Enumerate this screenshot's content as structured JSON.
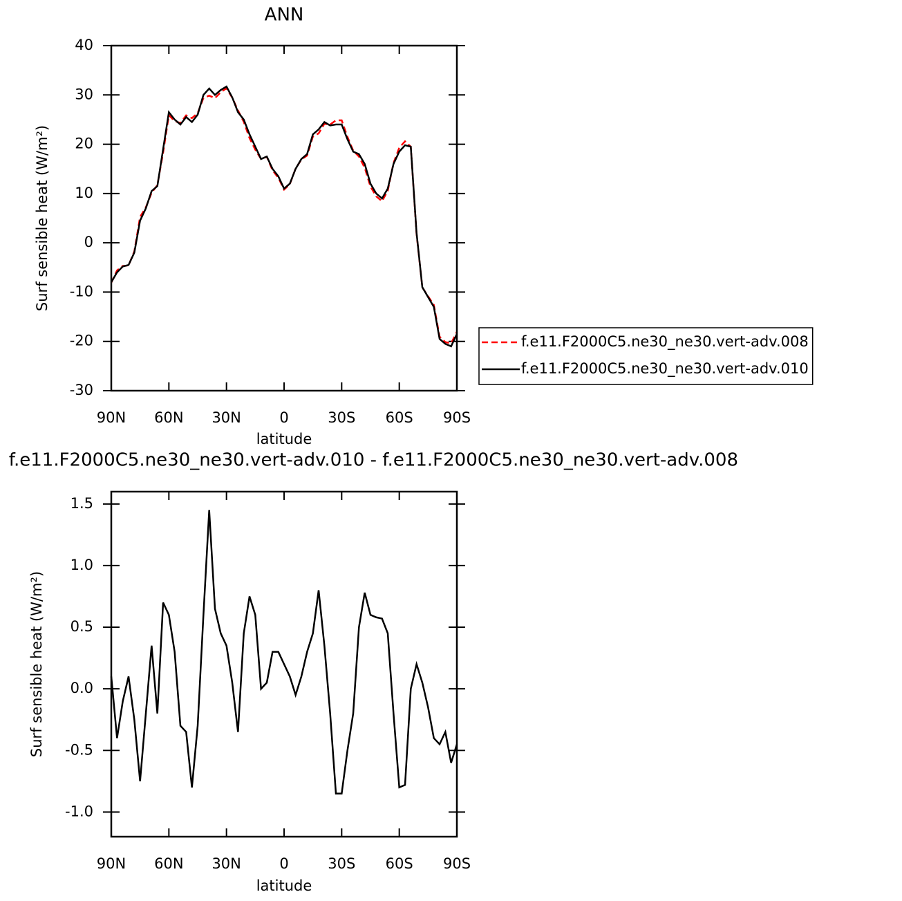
{
  "chart_data": [
    {
      "type": "line",
      "title": "ANN",
      "x_label": "latitude",
      "y_label": "Surf sensible heat (W/m²)",
      "x": [
        90,
        87,
        84,
        81,
        78,
        75,
        72,
        69,
        66,
        63,
        60,
        57,
        54,
        51,
        48,
        45,
        42,
        39,
        36,
        33,
        30,
        27,
        24,
        21,
        18,
        15,
        12,
        9,
        6,
        3,
        0,
        -3,
        -6,
        -9,
        -12,
        -15,
        -18,
        -21,
        -24,
        -27,
        -30,
        -33,
        -36,
        -39,
        -42,
        -45,
        -48,
        -51,
        -54,
        -57,
        -60,
        -63,
        -66,
        -69,
        -72,
        -75,
        -78,
        -81,
        -84,
        -87,
        -90
      ],
      "series": [
        {
          "name": "f.e11.F2000C5.ne30_ne30.vert-adv.008",
          "color": "#ff0000",
          "line_style": "dashed",
          "values": [
            -8.1,
            -5.6,
            -4.7,
            -4.6,
            -1.75,
            5.25,
            7.2,
            10.15,
            11.7,
            18.3,
            25.9,
            24.7,
            24.3,
            25.85,
            25.3,
            26.3,
            29.4,
            29.85,
            29.35,
            30.55,
            31.35,
            29.45,
            26.85,
            24.55,
            21.25,
            18.9,
            17,
            17.45,
            14.7,
            13.2,
            10.8,
            11.9,
            15.05,
            16.9,
            17.7,
            21.55,
            22.2,
            24.15,
            24,
            24.85,
            24.85,
            21.5,
            18.7,
            17.5,
            15.22,
            11.4,
            9.42,
            8.43,
            10.55,
            16.2,
            19.3,
            20.58,
            19.5,
            1.8,
            -9.05,
            -10.85,
            -12.6,
            -19.05,
            -20.15,
            -20.4,
            -18.05
          ]
        },
        {
          "name": "f.e11.F2000C5.ne30_ne30.vert-adv.010",
          "color": "#000000",
          "line_style": "solid",
          "values": [
            -8,
            -6,
            -4.8,
            -4.5,
            -2,
            4.5,
            7,
            10.5,
            11.5,
            19,
            26.5,
            25,
            24,
            25.5,
            24.5,
            26,
            30,
            31.3,
            30,
            31,
            31.7,
            29.5,
            26.5,
            25,
            22,
            19.5,
            17,
            17.5,
            15,
            13.5,
            11,
            12,
            15,
            17,
            18,
            22,
            23,
            24.5,
            23.8,
            24,
            24,
            21,
            18.5,
            18,
            16,
            12,
            10,
            9,
            11,
            16,
            18.5,
            19.8,
            19.5,
            2,
            -9,
            -11,
            -13,
            -19.5,
            -20.5,
            -21,
            -18.5
          ]
        }
      ],
      "xlim": [
        90,
        -90
      ],
      "xticks": [
        {
          "value": 90,
          "label": "90N"
        },
        {
          "value": 60,
          "label": "60N"
        },
        {
          "value": 30,
          "label": "30N"
        },
        0,
        {
          "value": -30,
          "label": "30S"
        },
        {
          "value": -60,
          "label": "60S"
        },
        {
          "value": -90,
          "label": "90S"
        }
      ],
      "ylim": [
        -30,
        40
      ],
      "yticks": [
        -30,
        -20,
        -10,
        0,
        10,
        20,
        30,
        40
      ],
      "legend_position": "right"
    },
    {
      "type": "line",
      "title": "f.e11.F2000C5.ne30_ne30.vert-adv.010 - f.e11.F2000C5.ne30_ne30.vert-adv.008",
      "x_label": "latitude",
      "y_label": "Surf sensible heat (W/m²)",
      "x": [
        90,
        87,
        84,
        81,
        78,
        75,
        72,
        69,
        66,
        63,
        60,
        57,
        54,
        51,
        48,
        45,
        42,
        39,
        36,
        33,
        30,
        27,
        24,
        21,
        18,
        15,
        12,
        9,
        6,
        3,
        0,
        -3,
        -6,
        -9,
        -12,
        -15,
        -18,
        -21,
        -24,
        -27,
        -30,
        -33,
        -36,
        -39,
        -42,
        -45,
        -48,
        -51,
        -54,
        -57,
        -60,
        -63,
        -66,
        -69,
        -72,
        -75,
        -78,
        -81,
        -84,
        -87,
        -90
      ],
      "color": "#000000",
      "values": [
        0.1,
        -0.4,
        -0.1,
        0.1,
        -0.25,
        -0.75,
        -0.2,
        0.35,
        -0.2,
        0.7,
        0.6,
        0.3,
        -0.3,
        -0.35,
        -0.8,
        -0.3,
        0.6,
        1.45,
        0.65,
        0.45,
        0.35,
        0.05,
        -0.35,
        0.45,
        0.75,
        0.6,
        0,
        0.05,
        0.3,
        0.3,
        0.2,
        0.1,
        -0.05,
        0.1,
        0.3,
        0.45,
        0.8,
        0.35,
        -0.2,
        -0.85,
        -0.85,
        -0.5,
        -0.2,
        0.5,
        0.78,
        0.6,
        0.58,
        0.57,
        0.45,
        -0.2,
        -0.8,
        -0.78,
        0,
        0.2,
        0.05,
        -0.15,
        -0.4,
        -0.45,
        -0.35,
        -0.6,
        -0.45
      ],
      "xlim": [
        90,
        -90
      ],
      "xticks": [
        {
          "value": 90,
          "label": "90N"
        },
        {
          "value": 60,
          "label": "60N"
        },
        {
          "value": 30,
          "label": "30N"
        },
        0,
        {
          "value": -30,
          "label": "30S"
        },
        {
          "value": -60,
          "label": "60S"
        },
        {
          "value": -90,
          "label": "90S"
        }
      ],
      "ylim": [
        -1.2,
        1.6
      ],
      "yticks": [
        {
          "value": -1,
          "label": "-1.0"
        },
        -0.5,
        {
          "value": 0,
          "label": "0.0"
        },
        0.5,
        {
          "value": 1,
          "label": "1.0"
        },
        1.5
      ]
    }
  ]
}
